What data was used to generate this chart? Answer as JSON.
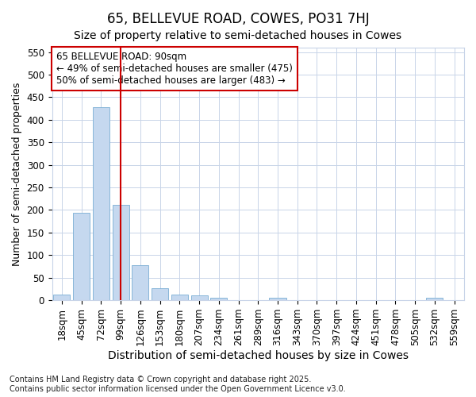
{
  "title": "65, BELLEVUE ROAD, COWES, PO31 7HJ",
  "subtitle": "Size of property relative to semi-detached houses in Cowes",
  "xlabel": "Distribution of semi-detached houses by size in Cowes",
  "ylabel": "Number of semi-detached properties",
  "categories": [
    "18sqm",
    "45sqm",
    "72sqm",
    "99sqm",
    "126sqm",
    "153sqm",
    "180sqm",
    "207sqm",
    "234sqm",
    "261sqm",
    "289sqm",
    "316sqm",
    "343sqm",
    "370sqm",
    "397sqm",
    "424sqm",
    "451sqm",
    "478sqm",
    "505sqm",
    "532sqm",
    "559sqm"
  ],
  "values": [
    13,
    193,
    428,
    212,
    77,
    27,
    13,
    10,
    5,
    0,
    0,
    5,
    0,
    0,
    0,
    0,
    0,
    0,
    0,
    5,
    0
  ],
  "bar_color": "#c5d8ef",
  "bar_edge_color": "#7aaed4",
  "ylim": [
    0,
    560
  ],
  "yticks": [
    0,
    50,
    100,
    150,
    200,
    250,
    300,
    350,
    400,
    450,
    500,
    550
  ],
  "vline_x": 3.0,
  "vline_color": "#cc0000",
  "annotation_line1": "65 BELLEVUE ROAD: 90sqm",
  "annotation_line2": "← 49% of semi-detached houses are smaller (475)",
  "annotation_line3": "50% of semi-detached houses are larger (483) →",
  "annotation_box_color": "#cc0000",
  "footer_text": "Contains HM Land Registry data © Crown copyright and database right 2025.\nContains public sector information licensed under the Open Government Licence v3.0.",
  "background_color": "#ffffff",
  "grid_color": "#c8d4e8",
  "title_fontsize": 12,
  "subtitle_fontsize": 10,
  "xlabel_fontsize": 10,
  "ylabel_fontsize": 9,
  "tick_fontsize": 8.5,
  "annotation_fontsize": 8.5,
  "footer_fontsize": 7
}
